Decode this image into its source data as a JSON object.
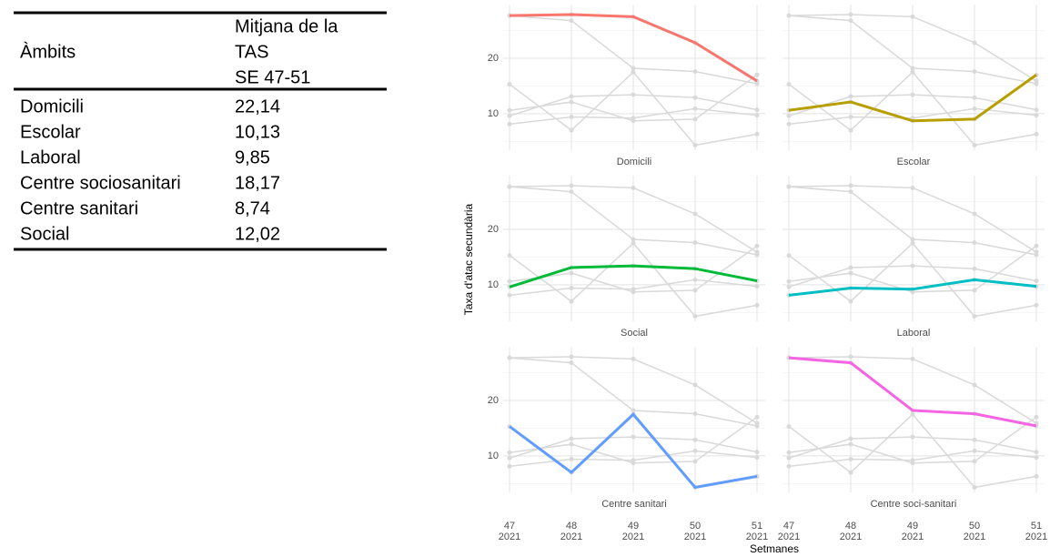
{
  "table": {
    "header": [
      "Àmbits",
      [
        "Mitjana de la",
        "TAS",
        "SE 47-51"
      ]
    ],
    "rows": [
      [
        "Domicili",
        "22,14"
      ],
      [
        "Escolar",
        "10,13"
      ],
      [
        "Laboral",
        "9,85"
      ],
      [
        "Centre sociosanitari",
        "18,17"
      ],
      [
        "Centre sanitari",
        "8,74"
      ],
      [
        "Social",
        "12,02"
      ]
    ]
  },
  "chart_data": {
    "type": "line",
    "y_label": "Taxa d'atac secundària",
    "x_label": "Setmanes",
    "categories": [
      [
        "47",
        "2021"
      ],
      [
        "48",
        "2021"
      ],
      [
        "49",
        "2021"
      ],
      [
        "50",
        "2021"
      ],
      [
        "51",
        "2021"
      ]
    ],
    "ylim": [
      3.4,
      29.7
    ],
    "yticks": [
      10,
      20
    ],
    "minor_yticks": [
      5,
      15,
      25
    ],
    "grid": true,
    "background_color": "#d9d9d9",
    "series": [
      {
        "name": "Domicili",
        "color": "#F8766D",
        "values": [
          27.7,
          27.9,
          27.5,
          22.8,
          15.9
        ]
      },
      {
        "name": "Escolar",
        "color": "#B79F00",
        "values": [
          10.6,
          12.1,
          8.7,
          9.0,
          17.0
        ]
      },
      {
        "name": "Social",
        "color": "#00BA38",
        "values": [
          9.6,
          13.1,
          13.4,
          12.9,
          10.7
        ]
      },
      {
        "name": "Laboral",
        "color": "#00BFC4",
        "values": [
          8.1,
          9.4,
          9.2,
          10.9,
          9.7
        ]
      },
      {
        "name": "Centre sanitari",
        "color": "#619CFF",
        "values": [
          15.3,
          7.0,
          17.5,
          4.3,
          6.3
        ]
      },
      {
        "name": "Centre soci-sanitari",
        "color": "#F564E3",
        "values": [
          27.7,
          26.8,
          18.2,
          17.6,
          15.4
        ]
      }
    ]
  }
}
